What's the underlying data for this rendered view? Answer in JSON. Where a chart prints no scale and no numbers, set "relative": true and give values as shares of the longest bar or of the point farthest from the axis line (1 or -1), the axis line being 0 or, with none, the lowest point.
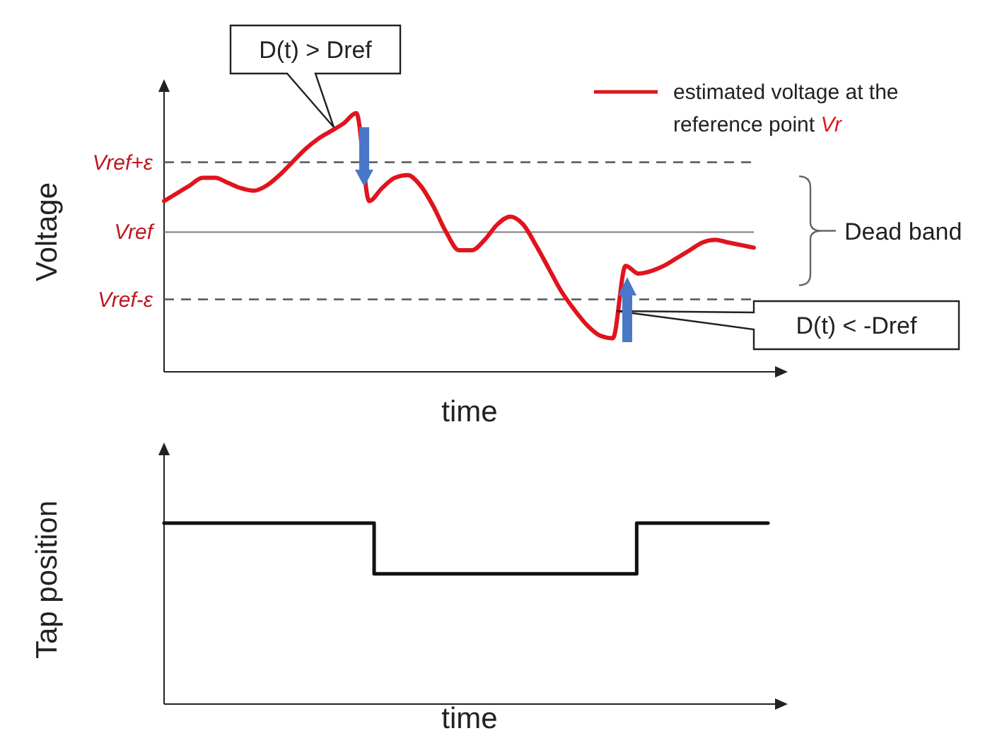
{
  "chart_data": [
    {
      "type": "line",
      "relative": true,
      "ylabel": "Voltage",
      "xlabel": "time",
      "legend": "top right",
      "categories": [
        null,
        null,
        null,
        null,
        null,
        null,
        null,
        null,
        null,
        null,
        null,
        null,
        null,
        null,
        null,
        null,
        null,
        null,
        null,
        null,
        null,
        null,
        null,
        null,
        null,
        null,
        null,
        null,
        null,
        null,
        null,
        null,
        null,
        null,
        null,
        null,
        null,
        null,
        null,
        null,
        null,
        null,
        null,
        null,
        null,
        null,
        null
      ],
      "series": [
        {
          "name": "estimated voltage at the reference point Vr",
          "color": "#e0141e",
          "values": [
            0.66,
            0.69,
            0.72,
            0.75,
            0.75,
            0.73,
            0.71,
            0.7,
            0.72,
            0.76,
            0.81,
            0.86,
            0.9,
            0.93,
            0.96,
            1.0,
            0.66,
            0.71,
            0.75,
            0.76,
            0.72,
            0.64,
            0.54,
            0.47,
            0.47,
            0.51,
            0.57,
            0.6,
            0.57,
            0.49,
            0.4,
            0.31,
            0.24,
            0.18,
            0.14,
            0.13,
            0.41,
            0.38,
            0.39,
            0.41,
            0.44,
            0.47,
            0.5,
            0.51,
            0.5,
            0.49,
            0.48
          ]
        }
      ],
      "ref_lines": [
        {
          "axis": "y",
          "value": 0.81,
          "label": "Vref+ε",
          "line_style": "dashed",
          "color": "#555555"
        },
        {
          "axis": "y",
          "value": 0.54,
          "label": "Vref",
          "line_style": "solid",
          "color": "#888888"
        },
        {
          "axis": "y",
          "value": 0.28,
          "label": "Vref-ε",
          "line_style": "dashed",
          "color": "#555555"
        }
      ],
      "annotations": [
        "D(t) > Dref",
        "D(t) < -Dref",
        "Dead band"
      ]
    },
    {
      "type": "step",
      "relative": true,
      "ylabel": "Tap position",
      "xlabel": "time",
      "categories": [
        null,
        null,
        null,
        null,
        null,
        null,
        null,
        null,
        null,
        null,
        null,
        null,
        null,
        null,
        null,
        null,
        null,
        null,
        null,
        null,
        null,
        null,
        null,
        null,
        null,
        null,
        null,
        null,
        null,
        null,
        null,
        null,
        null,
        null,
        null,
        null,
        null,
        null,
        null,
        null,
        null,
        null,
        null,
        null,
        null,
        null,
        null
      ],
      "series": [
        {
          "color": "#111111",
          "values": [
            1,
            1,
            1,
            1,
            1,
            1,
            1,
            1,
            1,
            1,
            1,
            1,
            1,
            1,
            1,
            1,
            0.72,
            0.72,
            0.72,
            0.72,
            0.72,
            0.72,
            0.72,
            0.72,
            0.72,
            0.72,
            0.72,
            0.72,
            0.72,
            0.72,
            0.72,
            0.72,
            0.72,
            0.72,
            0.72,
            0.72,
            1,
            1,
            1,
            1,
            1,
            1,
            1,
            1,
            1,
            1,
            1
          ]
        }
      ]
    }
  ]
}
